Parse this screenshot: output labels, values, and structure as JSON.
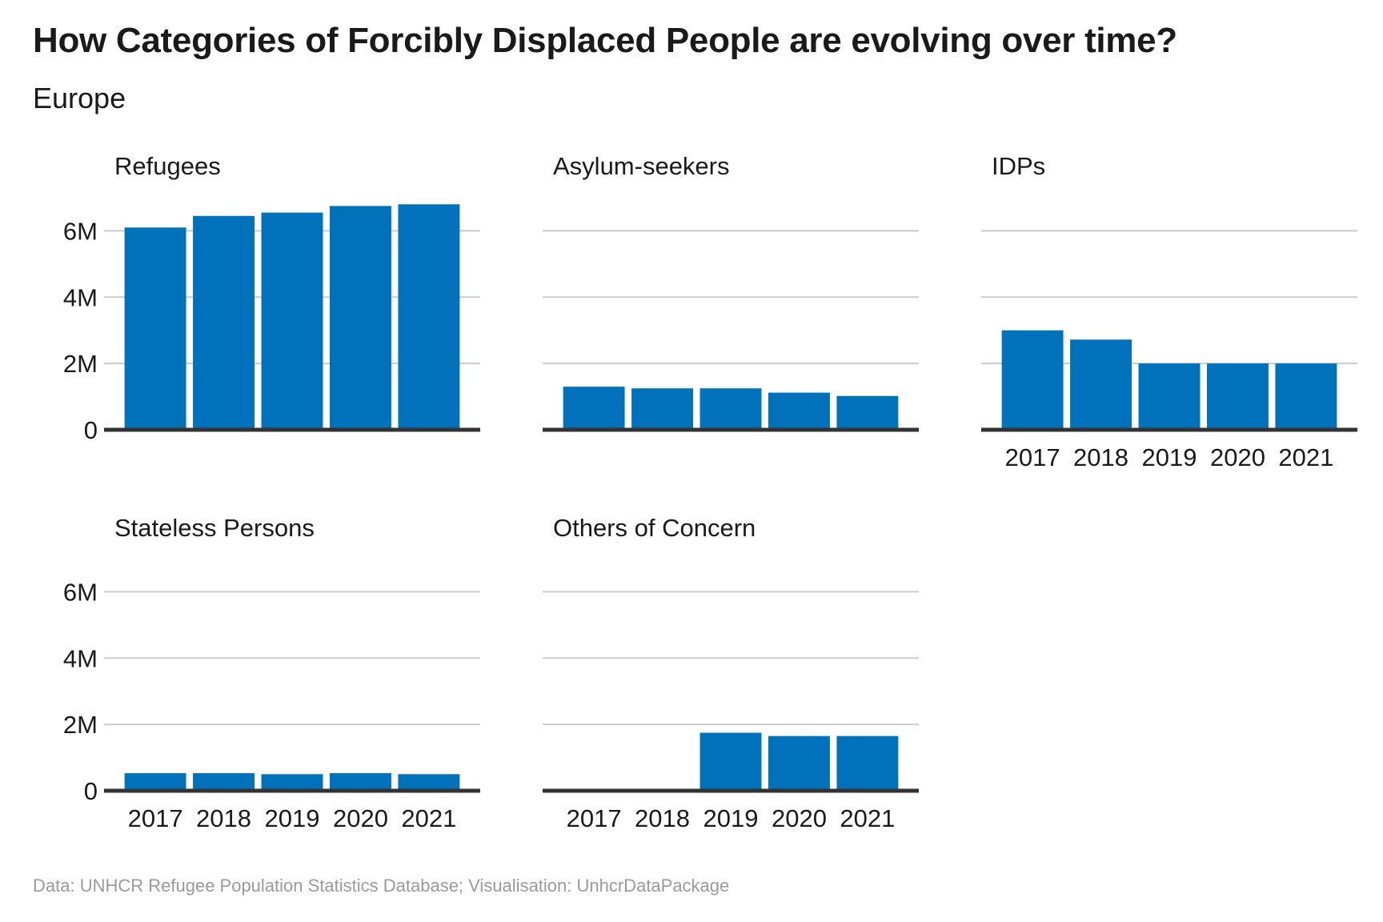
{
  "title": "How Categories of Forcibly Displaced People are evolving over time?",
  "subtitle": "Europe",
  "caption": "Data: UNHCR Refugee Population Statistics Database; Visualisation: UnhcrDataPackage",
  "colors": {
    "bar": "#0072bc",
    "grid": "#cccccc",
    "baseline": "#333333",
    "text": "#1a1a1a",
    "caption": "#9a9a9a"
  },
  "chart_data": {
    "type": "bar",
    "layout": "small-multiples",
    "categories": [
      "2017",
      "2018",
      "2019",
      "2020",
      "2021"
    ],
    "ylim": [
      0,
      7000000
    ],
    "yticks": [
      0,
      2000000,
      4000000,
      6000000
    ],
    "ytick_labels": [
      "0",
      "2M",
      "4M",
      "6M"
    ],
    "grid": true,
    "series": [
      {
        "name": "Refugees",
        "values": [
          6100000,
          6450000,
          6550000,
          6750000,
          6800000
        ]
      },
      {
        "name": "Asylum-seekers",
        "values": [
          1300000,
          1250000,
          1250000,
          1120000,
          1020000
        ]
      },
      {
        "name": "IDPs",
        "values": [
          3000000,
          2720000,
          2000000,
          2000000,
          2000000
        ]
      },
      {
        "name": "Stateless Persons",
        "values": [
          530000,
          530000,
          500000,
          530000,
          500000
        ]
      },
      {
        "name": "Others of Concern",
        "values": [
          0,
          0,
          1750000,
          1650000,
          1650000
        ]
      }
    ]
  }
}
